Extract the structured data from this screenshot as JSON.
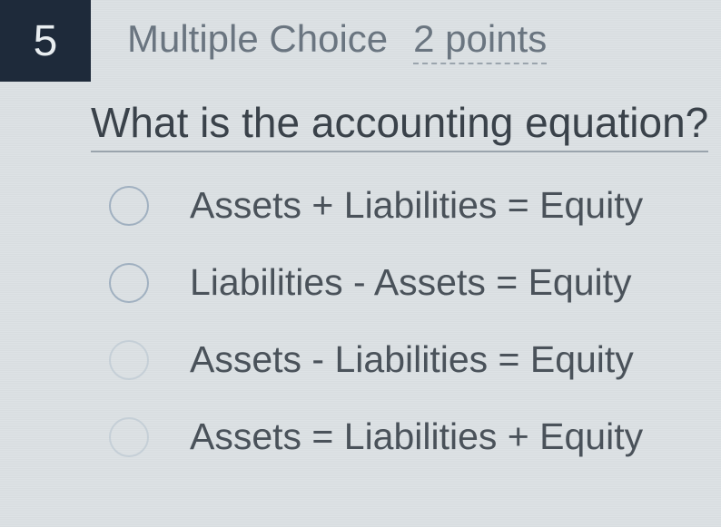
{
  "question": {
    "number": "5",
    "type": "Multiple Choice",
    "points": "2 points",
    "text": "What is the accounting equation?"
  },
  "options": [
    {
      "label": "Assets + Liabilities = Equity"
    },
    {
      "label": "Liabilities - Assets = Equity"
    },
    {
      "label": "Assets - Liabilities = Equity"
    },
    {
      "label": "Assets = Liabilities + Equity"
    }
  ],
  "colors": {
    "number_bg": "#1e2a3a",
    "number_fg": "#e8edf0",
    "header_text": "#6a7580",
    "question_text": "#3a424a",
    "option_text": "#4a525a",
    "radio_border": "#a0b0c0"
  }
}
